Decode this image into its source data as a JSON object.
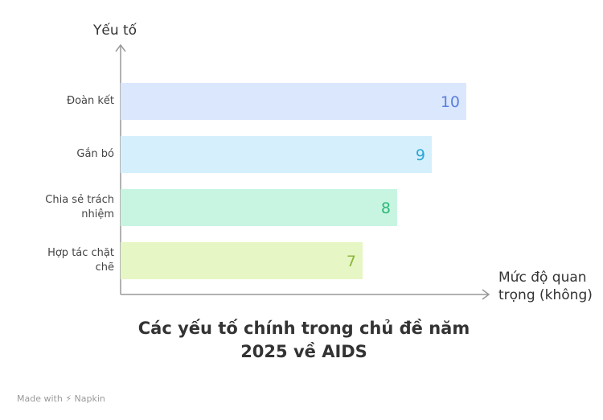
{
  "chart_data": {
    "type": "bar",
    "orientation": "horizontal",
    "title": "Các yếu tố chính trong chủ đề năm 2025 về AIDS",
    "y_label": "Yếu tố",
    "x_label": "Mức độ quan trọng (không)",
    "categories": [
      "Đoàn kết",
      "Gắn bó",
      "Chia sẻ trách nhiệm",
      "Hợp tác chặt chẽ"
    ],
    "values": [
      10,
      9,
      8,
      7
    ],
    "colors": [
      "#dbe7fd",
      "#d5f0fc",
      "#c8f5e1",
      "#e6f6c4"
    ],
    "label_colors": [
      "#5a80dc",
      "#2aa6d6",
      "#2db879",
      "#8db63a"
    ],
    "xlim": [
      0,
      10
    ]
  },
  "footer": {
    "made_with": "Made with",
    "brand": "Napkin"
  }
}
